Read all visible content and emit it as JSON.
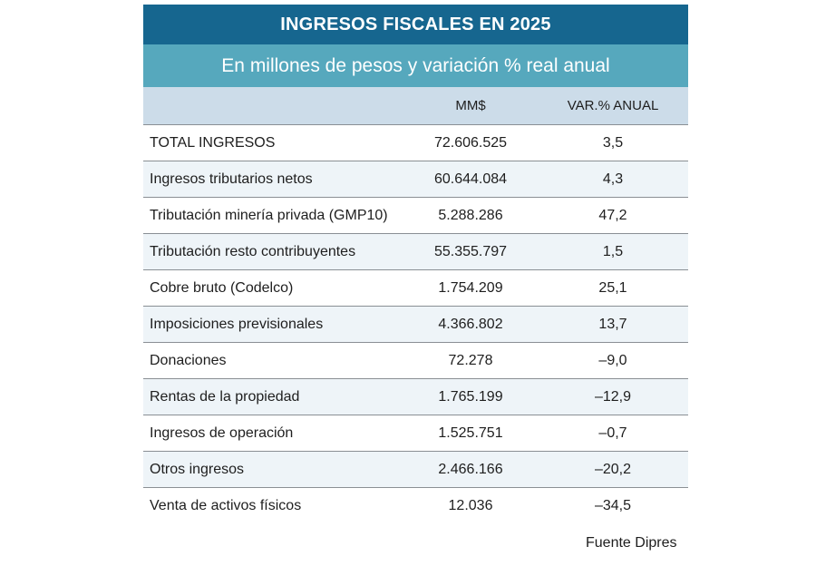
{
  "title": "INGRESOS FISCALES EN 2025",
  "subtitle": "En millones de pesos y variación % real anual",
  "columns": {
    "label": "",
    "amount": "MM$",
    "variation": "VAR.% ANUAL"
  },
  "rows": [
    {
      "label": "TOTAL INGRESOS",
      "amount": "72.606.525",
      "variation": "3,5"
    },
    {
      "label": "Ingresos tributarios netos",
      "amount": "60.644.084",
      "variation": "4,3"
    },
    {
      "label": "Tributación minería privada (GMP10)",
      "amount": "5.288.286",
      "variation": "47,2"
    },
    {
      "label": "Tributación resto contribuyentes",
      "amount": "55.355.797",
      "variation": "1,5"
    },
    {
      "label": "Cobre bruto (Codelco)",
      "amount": "1.754.209",
      "variation": "25,1"
    },
    {
      "label": "Imposiciones previsionales",
      "amount": "4.366.802",
      "variation": "13,7"
    },
    {
      "label": "Donaciones",
      "amount": "72.278",
      "variation": "–9,0"
    },
    {
      "label": "Rentas de la propiedad",
      "amount": "1.765.199",
      "variation": "–12,9"
    },
    {
      "label": "Ingresos de operación",
      "amount": "1.525.751",
      "variation": "–0,7"
    },
    {
      "label": "Otros ingresos",
      "amount": "2.466.166",
      "variation": "–20,2"
    },
    {
      "label": "Venta de activos físicos",
      "amount": "12.036",
      "variation": "–34,5"
    }
  ],
  "source": "Fuente Dipres",
  "colors": {
    "title_band": "#16668f",
    "subtitle_band": "#56a8bd",
    "header_band": "#ccdce9",
    "alt_row": "#eef4f8"
  }
}
